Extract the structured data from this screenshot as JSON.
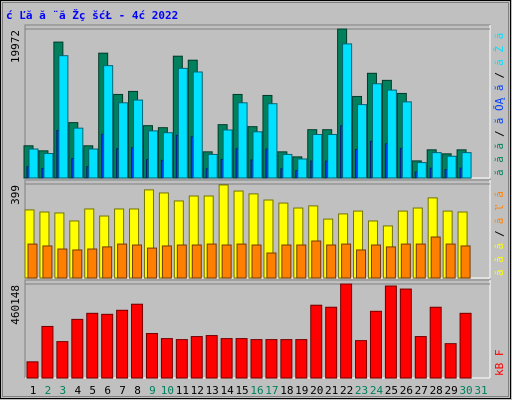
{
  "title": "ć Ľă  ă ¨ă Žç šćŁ  - 4ć   2022",
  "title_color": "#0000ff",
  "days": [
    "1",
    "2",
    "3",
    "4",
    "5",
    "6",
    "7",
    "8",
    "9",
    "10",
    "11",
    "12",
    "13",
    "14",
    "15",
    "16",
    "17",
    "18",
    "19",
    "20",
    "21",
    "22",
    "23",
    "24",
    "25",
    "26",
    "27",
    "28",
    "29",
    "30",
    "31"
  ],
  "weekend": [
    false,
    true,
    true,
    false,
    false,
    false,
    false,
    false,
    true,
    true,
    false,
    false,
    false,
    false,
    false,
    true,
    true,
    false,
    false,
    false,
    false,
    false,
    true,
    true,
    false,
    false,
    false,
    false,
    false,
    true,
    true
  ],
  "day_color": "#000000",
  "weekend_color": "#00805c",
  "legend_separator": "/",
  "chart_data": [
    {
      "type": "bar",
      "ylim": [
        0,
        19972
      ],
      "yticks": [
        19972
      ],
      "series": [
        {
          "name": "ă ă ă",
          "color": "#00805c",
          "values": [
            4318,
            3644,
            18217,
            7422,
            4318,
            16733,
            11200,
            11605,
            7017,
            6747,
            16328,
            15788,
            3509,
            7152,
            11200,
            6882,
            11065,
            3509,
            2834,
            6477,
            6477,
            19972,
            10930,
            14034,
            13089,
            11335,
            2294,
            3778,
            3239,
            3778,
            null
          ]
        },
        {
          "name": "ă ŐĄ ă",
          "color": "#0040ff",
          "values": [
            1511,
            1275,
            6376,
            2598,
            1511,
            5857,
            3920,
            4062,
            2456,
            2361,
            5715,
            5526,
            1228,
            2503,
            3920,
            2409,
            3873,
            1228,
            992,
            2267,
            2267,
            6990,
            3826,
            4912,
            4581,
            3967,
            803,
            1322,
            1134,
            1322,
            null
          ]
        },
        {
          "name": "ă Ž ă",
          "color": "#00e0ff",
          "values": [
            3886,
            3280,
            16395,
            6680,
            3886,
            15060,
            10080,
            10445,
            6315,
            6072,
            14695,
            14209,
            3158,
            6437,
            10080,
            6194,
            9959,
            3158,
            2551,
            5829,
            5829,
            17975,
            9837,
            12631,
            11780,
            10202,
            2065,
            3400,
            2915,
            3400,
            null
          ]
        }
      ]
    },
    {
      "type": "bar",
      "ylim": [
        0,
        399
      ],
      "yticks": [
        399
      ],
      "series": [
        {
          "name": "ă ă ă",
          "color": "#ffff00",
          "values": [
            289,
            280,
            276,
            242,
            293,
            263,
            293,
            293,
            374,
            361,
            327,
            348,
            348,
            395,
            369,
            357,
            331,
            318,
            297,
            306,
            250,
            272,
            284,
            242,
            221,
            284,
            297,
            340,
            284,
            280,
            null
          ]
        },
        {
          "name": "ă ľ ă",
          "color": "#ff8000",
          "values": [
            144,
            136,
            123,
            119,
            123,
            132,
            144,
            140,
            127,
            136,
            140,
            140,
            144,
            140,
            144,
            140,
            106,
            140,
            140,
            157,
            140,
            144,
            119,
            140,
            132,
            144,
            144,
            174,
            144,
            136,
            null
          ]
        }
      ]
    },
    {
      "type": "bar",
      "ylim": [
        0,
        460148
      ],
      "yticks": [
        460148
      ],
      "series": [
        {
          "name": "kB F",
          "color": "#ff0000",
          "values": [
            79166,
            252339,
            178122,
            286973,
            316661,
            311713,
            331505,
            361191,
            217704,
            192965,
            188017,
            202861,
            207809,
            192965,
            192965,
            188017,
            188017,
            188017,
            188017,
            356243,
            346347,
            460148,
            183071,
            326557,
            450252,
            435407,
            202861,
            346347,
            168226,
            316661,
            null
          ]
        }
      ]
    }
  ]
}
